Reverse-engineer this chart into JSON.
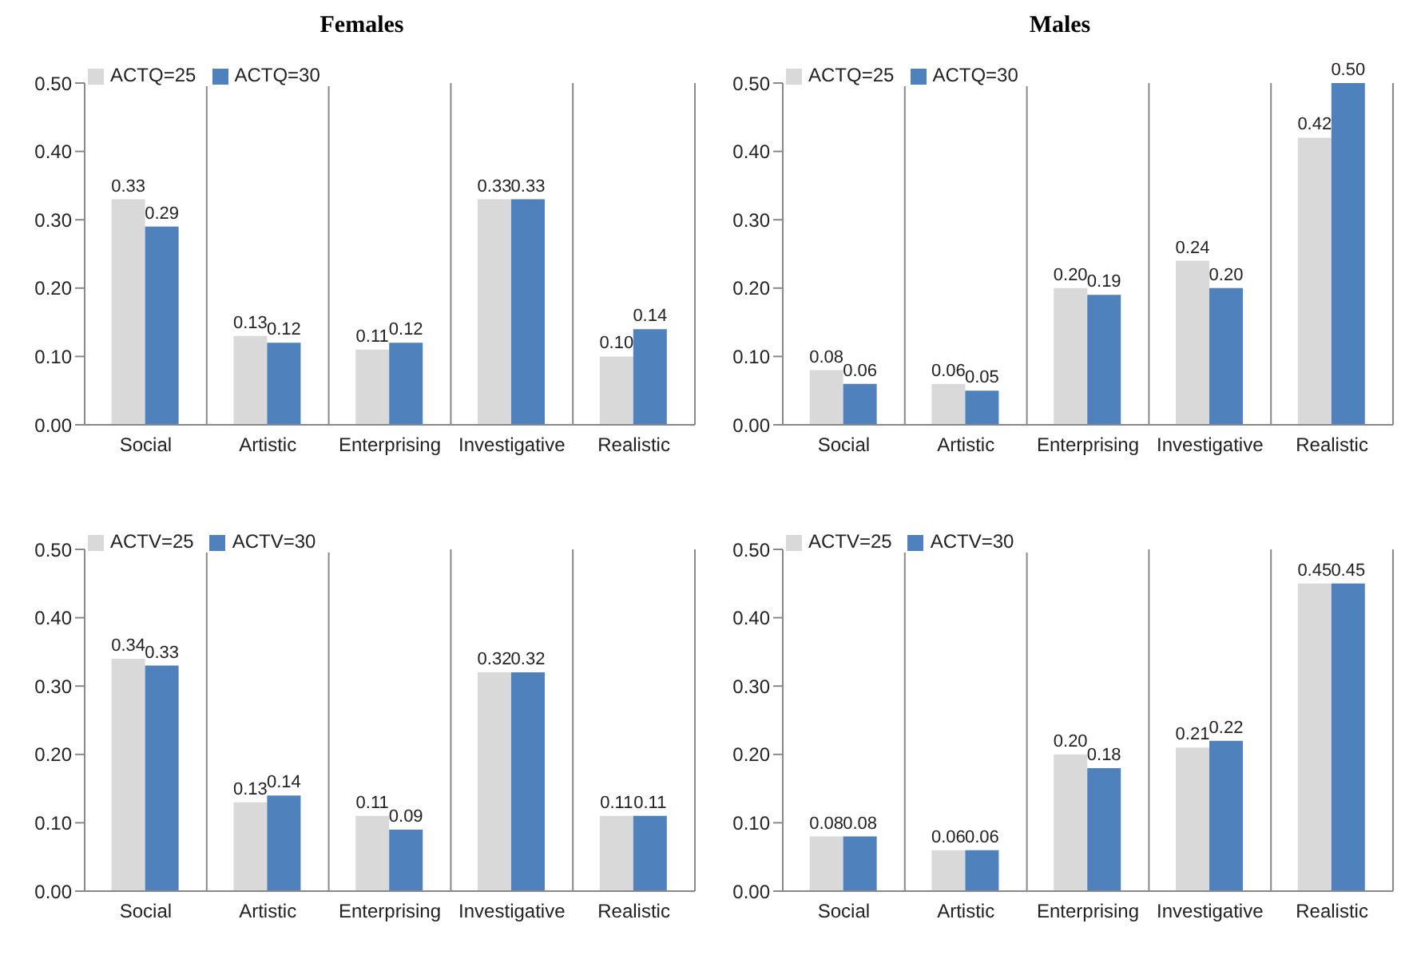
{
  "chart_data": [
    {
      "type": "bar",
      "title": "Females",
      "categories": [
        "Social",
        "Artistic",
        "Enterprising",
        "Investigative",
        "Realistic"
      ],
      "series": [
        {
          "name": "ACTQ=25",
          "color": "#d9d9d9",
          "values": [
            0.33,
            0.13,
            0.11,
            0.33,
            0.1
          ],
          "value_labels": [
            "0.33",
            "0.13",
            "0.11",
            "0.33",
            "0.10"
          ]
        },
        {
          "name": "ACTQ=30",
          "color": "#4f81bd",
          "values": [
            0.29,
            0.12,
            0.12,
            0.33,
            0.14
          ],
          "value_labels": [
            "0.29",
            "0.12",
            "0.12",
            "0.33",
            "0.14"
          ]
        }
      ],
      "ylim": [
        0,
        0.5
      ],
      "yticks": [
        {
          "value": 0,
          "label": "0.00"
        },
        {
          "value": 0.1,
          "label": "0.10"
        },
        {
          "value": 0.2,
          "label": "0.20"
        },
        {
          "value": 0.3,
          "label": "0.30"
        },
        {
          "value": 0.4,
          "label": "0.40"
        },
        {
          "value": 0.5,
          "label": "0.50"
        }
      ],
      "grid": "x",
      "legend": "top left"
    },
    {
      "type": "bar",
      "title": "Males",
      "categories": [
        "Social",
        "Artistic",
        "Enterprising",
        "Investigative",
        "Realistic"
      ],
      "series": [
        {
          "name": "ACTQ=25",
          "color": "#d9d9d9",
          "values": [
            0.08,
            0.06,
            0.2,
            0.24,
            0.42
          ],
          "value_labels": [
            "0.08",
            "0.06",
            "0.20",
            "0.24",
            "0.42"
          ]
        },
        {
          "name": "ACTQ=30",
          "color": "#4f81bd",
          "values": [
            0.06,
            0.05,
            0.19,
            0.2,
            0.5
          ],
          "value_labels": [
            "0.06",
            "0.05",
            "0.19",
            "0.20",
            "0.50"
          ]
        }
      ],
      "ylim": [
        0,
        0.5
      ],
      "yticks": [
        {
          "value": 0,
          "label": "0.00"
        },
        {
          "value": 0.1,
          "label": "0.10"
        },
        {
          "value": 0.2,
          "label": "0.20"
        },
        {
          "value": 0.3,
          "label": "0.30"
        },
        {
          "value": 0.4,
          "label": "0.40"
        },
        {
          "value": 0.5,
          "label": "0.50"
        }
      ],
      "grid": "x",
      "legend": "top left"
    },
    {
      "type": "bar",
      "categories": [
        "Social",
        "Artistic",
        "Enterprising",
        "Investigative",
        "Realistic"
      ],
      "series": [
        {
          "name": "ACTV=25",
          "color": "#d9d9d9",
          "values": [
            0.34,
            0.13,
            0.11,
            0.32,
            0.11
          ],
          "value_labels": [
            "0.34",
            "0.13",
            "0.11",
            "0.32",
            "0.11"
          ]
        },
        {
          "name": "ACTV=30",
          "color": "#4f81bd",
          "values": [
            0.33,
            0.14,
            0.09,
            0.32,
            0.11
          ],
          "value_labels": [
            "0.33",
            "0.14",
            "0.09",
            "0.32",
            "0.11"
          ]
        }
      ],
      "ylim": [
        0,
        0.5
      ],
      "yticks": [
        {
          "value": 0,
          "label": "0.00"
        },
        {
          "value": 0.1,
          "label": "0.10"
        },
        {
          "value": 0.2,
          "label": "0.20"
        },
        {
          "value": 0.3,
          "label": "0.30"
        },
        {
          "value": 0.4,
          "label": "0.40"
        },
        {
          "value": 0.5,
          "label": "0.50"
        }
      ],
      "grid": "x",
      "legend": "top left"
    },
    {
      "type": "bar",
      "categories": [
        "Social",
        "Artistic",
        "Enterprising",
        "Investigative",
        "Realistic"
      ],
      "series": [
        {
          "name": "ACTV=25",
          "color": "#d9d9d9",
          "values": [
            0.08,
            0.06,
            0.2,
            0.21,
            0.45
          ],
          "value_labels": [
            "0.08",
            "0.06",
            "0.20",
            "0.21",
            "0.45"
          ]
        },
        {
          "name": "ACTV=30",
          "color": "#4f81bd",
          "values": [
            0.08,
            0.06,
            0.18,
            0.22,
            0.45
          ],
          "value_labels": [
            "0.08",
            "0.06",
            "0.18",
            "0.22",
            "0.45"
          ]
        }
      ],
      "ylim": [
        0,
        0.5
      ],
      "yticks": [
        {
          "value": 0,
          "label": "0.00"
        },
        {
          "value": 0.1,
          "label": "0.10"
        },
        {
          "value": 0.2,
          "label": "0.20"
        },
        {
          "value": 0.3,
          "label": "0.30"
        },
        {
          "value": 0.4,
          "label": "0.40"
        },
        {
          "value": 0.5,
          "label": "0.50"
        }
      ],
      "grid": "x",
      "legend": "top left"
    }
  ]
}
